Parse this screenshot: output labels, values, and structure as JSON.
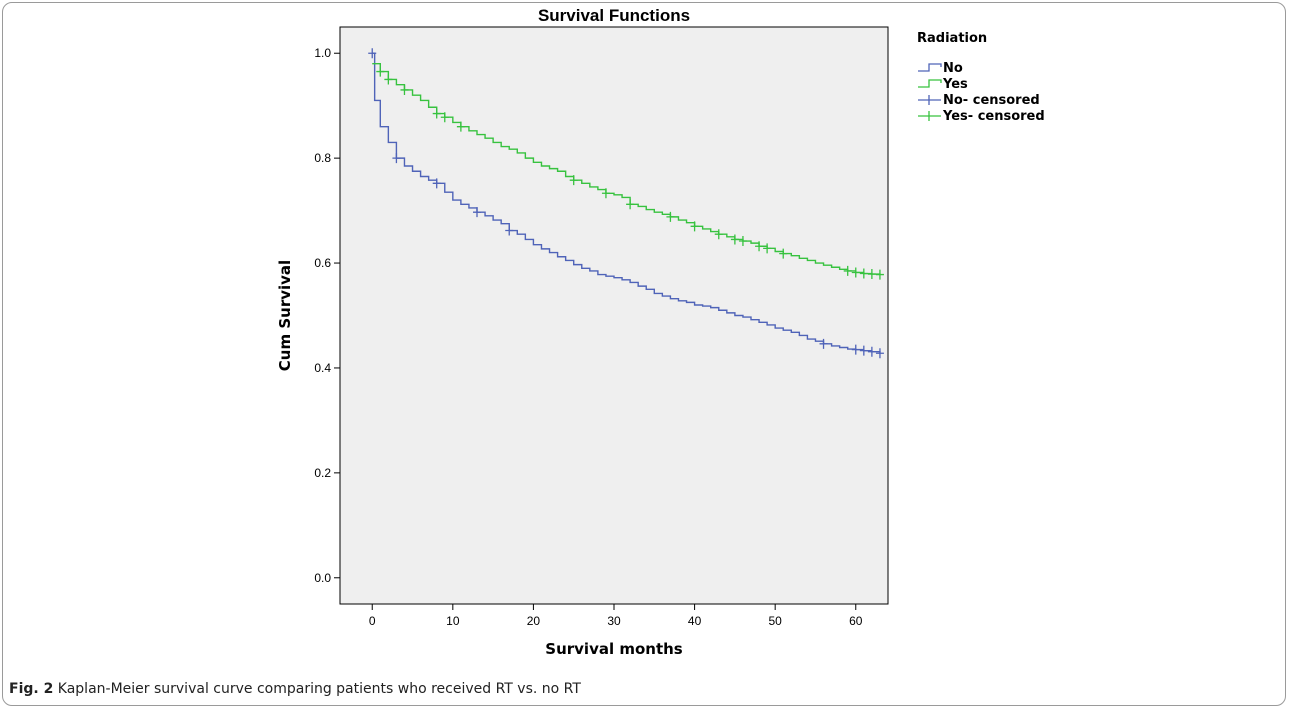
{
  "figure": {
    "caption_label": "Fig. 2",
    "caption_text": "Kaplan-Meier survival curve comparing patients who received RT vs. no RT"
  },
  "colors": {
    "plot_background": "#efefef",
    "no": "#4f63b8",
    "yes": "#37c23f",
    "text": "#000000"
  },
  "chart_data": {
    "type": "line",
    "subtype": "kaplan-meier step",
    "title": "Survival Functions",
    "xlabel": "Survival months",
    "ylabel": "Cum Survival",
    "xlim": [
      -4,
      64
    ],
    "ylim": [
      -0.05,
      1.05
    ],
    "xticks": [
      0,
      10,
      20,
      30,
      40,
      50,
      60
    ],
    "yticks": [
      0.0,
      0.2,
      0.4,
      0.6,
      0.8,
      1.0
    ],
    "ytick_labels": [
      "0.0",
      "0.2",
      "0.4",
      "0.6",
      "0.8",
      "1.0"
    ],
    "grid": false,
    "legend_position": "right, outside plot",
    "legend": {
      "title": "Radiation",
      "entries": [
        "No",
        "Yes",
        "No- censored",
        "Yes- censored"
      ]
    },
    "series": [
      {
        "name": "No",
        "x": [
          0,
          0.3,
          1,
          2,
          3,
          4,
          5,
          6,
          7,
          8,
          9,
          10,
          11,
          12,
          13,
          14,
          15,
          16,
          17,
          18,
          19,
          20,
          21,
          22,
          23,
          24,
          25,
          26,
          27,
          28,
          29,
          30,
          31,
          32,
          33,
          34,
          35,
          36,
          37,
          38,
          39,
          40,
          41,
          42,
          43,
          44,
          45,
          46,
          47,
          48,
          49,
          50,
          51,
          52,
          53,
          54,
          55,
          56,
          57,
          58,
          59,
          60,
          61,
          62,
          63
        ],
        "y": [
          1.0,
          0.91,
          0.86,
          0.83,
          0.8,
          0.785,
          0.775,
          0.765,
          0.758,
          0.752,
          0.735,
          0.72,
          0.712,
          0.705,
          0.697,
          0.69,
          0.682,
          0.675,
          0.662,
          0.655,
          0.645,
          0.635,
          0.627,
          0.62,
          0.612,
          0.605,
          0.597,
          0.59,
          0.585,
          0.578,
          0.575,
          0.572,
          0.568,
          0.563,
          0.556,
          0.55,
          0.542,
          0.537,
          0.532,
          0.528,
          0.525,
          0.52,
          0.518,
          0.515,
          0.51,
          0.505,
          0.5,
          0.497,
          0.492,
          0.487,
          0.482,
          0.476,
          0.472,
          0.468,
          0.462,
          0.455,
          0.451,
          0.446,
          0.442,
          0.439,
          0.436,
          0.435,
          0.433,
          0.431,
          0.428
        ],
        "censored": [
          [
            0,
            1.0
          ],
          [
            3,
            0.8
          ],
          [
            8,
            0.752
          ],
          [
            13,
            0.697
          ],
          [
            17,
            0.662
          ],
          [
            56,
            0.446
          ],
          [
            60,
            0.435
          ],
          [
            61,
            0.433
          ],
          [
            62,
            0.431
          ],
          [
            63,
            0.428
          ]
        ]
      },
      {
        "name": "Yes",
        "x": [
          0,
          1,
          2,
          3,
          4,
          5,
          6,
          7,
          8,
          9,
          10,
          11,
          12,
          13,
          14,
          15,
          16,
          17,
          18,
          19,
          20,
          21,
          22,
          23,
          24,
          25,
          26,
          27,
          28,
          29,
          30,
          31,
          32,
          33,
          34,
          35,
          36,
          37,
          38,
          39,
          40,
          41,
          42,
          43,
          44,
          45,
          46,
          47,
          48,
          49,
          50,
          51,
          52,
          53,
          54,
          55,
          56,
          57,
          58,
          59,
          60,
          61,
          62,
          63
        ],
        "y": [
          0.98,
          0.965,
          0.95,
          0.94,
          0.93,
          0.92,
          0.91,
          0.897,
          0.885,
          0.878,
          0.868,
          0.86,
          0.852,
          0.845,
          0.838,
          0.83,
          0.822,
          0.817,
          0.81,
          0.8,
          0.792,
          0.785,
          0.78,
          0.775,
          0.765,
          0.758,
          0.752,
          0.745,
          0.74,
          0.733,
          0.73,
          0.725,
          0.712,
          0.708,
          0.702,
          0.697,
          0.693,
          0.688,
          0.682,
          0.677,
          0.67,
          0.665,
          0.66,
          0.655,
          0.65,
          0.645,
          0.642,
          0.638,
          0.632,
          0.628,
          0.622,
          0.618,
          0.614,
          0.609,
          0.605,
          0.6,
          0.596,
          0.592,
          0.588,
          0.585,
          0.582,
          0.58,
          0.579,
          0.578
        ],
        "censored": [
          [
            1,
            0.965
          ],
          [
            2,
            0.95
          ],
          [
            4,
            0.93
          ],
          [
            8,
            0.885
          ],
          [
            9,
            0.878
          ],
          [
            11,
            0.86
          ],
          [
            25,
            0.758
          ],
          [
            29,
            0.733
          ],
          [
            32,
            0.712
          ],
          [
            37,
            0.688
          ],
          [
            40,
            0.67
          ],
          [
            43,
            0.655
          ],
          [
            45,
            0.645
          ],
          [
            46,
            0.642
          ],
          [
            48,
            0.632
          ],
          [
            49,
            0.628
          ],
          [
            51,
            0.618
          ],
          [
            59,
            0.585
          ],
          [
            60,
            0.582
          ],
          [
            61,
            0.58
          ],
          [
            62,
            0.579
          ],
          [
            63,
            0.578
          ]
        ]
      }
    ]
  }
}
